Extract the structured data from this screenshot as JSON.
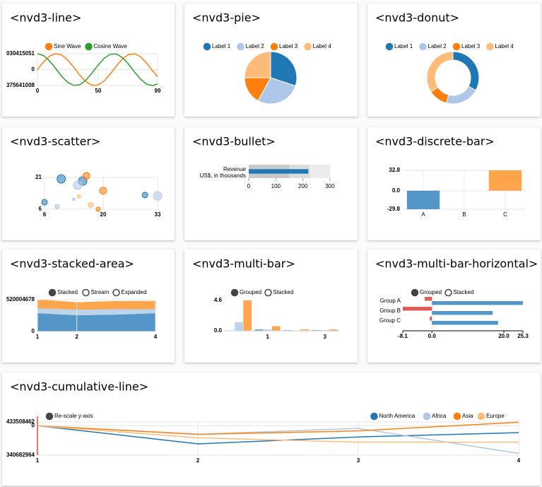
{
  "chart_data": [
    {
      "type": "line",
      "title": "<nvd3-line>",
      "legend": "top",
      "x": [
        0,
        5,
        10,
        15,
        20,
        25,
        30,
        35,
        40,
        45,
        50,
        55,
        60,
        65,
        70,
        75,
        80,
        85,
        90,
        95,
        99
      ],
      "series": [
        {
          "name": "Sine Wave",
          "color": "#ff7f0e",
          "values": [
            0,
            0.48,
            0.84,
            1.0,
            0.91,
            0.6,
            0.14,
            -0.35,
            -0.76,
            -0.98,
            -0.96,
            -0.71,
            -0.28,
            0.22,
            0.66,
            0.94,
            0.99,
            0.8,
            0.41,
            -0.08,
            -0.46
          ]
        },
        {
          "name": "Cosine Wave",
          "color": "#2ca02c",
          "values": [
            1,
            0.88,
            0.54,
            0.07,
            -0.42,
            -0.8,
            -0.99,
            -0.94,
            -0.65,
            -0.21,
            0.28,
            0.71,
            0.96,
            0.98,
            0.75,
            0.35,
            -0.15,
            -0.6,
            -0.91,
            -1.0,
            -0.89
          ]
        }
      ],
      "xlim": [
        0,
        99
      ],
      "xticks": [
        0,
        50,
        99
      ],
      "ylim": [
        -0.99375641008,
        0.99030415051
      ],
      "yticks": [
        {
          "value": -0.99375641008,
          "label": "375641008"
        },
        0,
        {
          "value": 0.99030415051,
          "label": "030415051"
        }
      ],
      "grid": true
    },
    {
      "type": "pie",
      "title": "<nvd3-pie>",
      "categories": [
        "Label 1",
        "Label 2",
        "Label 3",
        "Label 4"
      ],
      "values": [
        30,
        28,
        17,
        25
      ],
      "colors": [
        "#1f77b4",
        "#aec7e8",
        "#ff7f0e",
        "#ffbb78"
      ]
    },
    {
      "type": "donut",
      "title": "<nvd3-donut>",
      "categories": [
        "Label 1",
        "Label 2",
        "Label 3",
        "Label 4"
      ],
      "values": [
        33,
        21,
        12,
        34
      ],
      "colors": [
        "#1f77b4",
        "#aec7e8",
        "#ff7f0e",
        "#ffbb78"
      ]
    },
    {
      "type": "scatter",
      "title": "<nvd3-scatter>",
      "series": [
        {
          "color": "#1f77b4",
          "x": [
            10,
            15.1,
            6,
            30
          ],
          "values": [
            20.3,
            19.3,
            9.3,
            12.7
          ],
          "sizes": [
            6,
            6,
            4,
            4
          ]
        },
        {
          "color": "#aec7e8",
          "x": [
            13.9,
            9,
            33,
            13
          ],
          "values": [
            17.3,
            7.3,
            12.3,
            10.7
          ],
          "sizes": [
            6,
            3,
            6,
            2
          ]
        },
        {
          "color": "#ff7f0e",
          "x": [
            16,
            20,
            18.8
          ],
          "values": [
            21.7,
            14.7,
            6
          ],
          "sizes": [
            5,
            5,
            3
          ]
        },
        {
          "color": "#ffbb78",
          "x": [
            14.2,
            17
          ],
          "values": [
            12,
            8
          ],
          "sizes": [
            2.5,
            3.5
          ]
        }
      ],
      "xlim": [
        6,
        33
      ],
      "xticks": [
        6,
        20,
        33
      ],
      "ylim": [
        6,
        21
      ],
      "yticks": [
        6,
        21
      ],
      "grid": true
    },
    {
      "type": "bullet",
      "title": "<nvd3-bullet>",
      "label": "Revenue",
      "sublabel": "US$, in thousands",
      "ranges": [
        150,
        225,
        300
      ],
      "measures": [
        220
      ],
      "range_colors": [
        "#c8c8c8",
        "#dcdcdc",
        "#ececec"
      ],
      "color": "#1f77b4",
      "xlim": [
        0,
        300
      ],
      "xticks": [
        0,
        100,
        200,
        300
      ]
    },
    {
      "type": "bar",
      "title": "<nvd3-discrete-bar>",
      "categories": [
        "A",
        "B",
        "C"
      ],
      "values": [
        -29.8,
        0,
        32.8
      ],
      "colors": [
        "#5596c8",
        "#aec7e8",
        "#ffa64d"
      ],
      "ylim": [
        -29.8,
        32.8
      ],
      "yticks": [
        -29.8,
        {
          "value": 0,
          "label": "0.0"
        },
        32.8
      ],
      "grid": true
    },
    {
      "type": "area",
      "title": "<nvd3-stacked-area>",
      "controls": [
        "Stacked",
        "Stream",
        "Expanded"
      ],
      "controls_selected": 0,
      "x": [
        1,
        2,
        3,
        4
      ],
      "series": [
        {
          "color": "#5596c8",
          "values": [
            0.88,
            0.78,
            0.81,
            0.88
          ]
        },
        {
          "color": "#bcd3ec",
          "values": [
            0.24,
            0.27,
            0.27,
            0.2
          ]
        },
        {
          "color": "#ffa64d",
          "values": [
            0.41,
            0.34,
            0.37,
            0.37
          ]
        }
      ],
      "xlim": [
        1,
        4
      ],
      "xticks": [
        1,
        2,
        4
      ],
      "ylim": [
        0,
        1.520004678
      ],
      "yticks": [
        0,
        {
          "value": 1.520004678,
          "label": "520004678"
        }
      ],
      "grid": true
    },
    {
      "type": "groupedbar",
      "title": "<nvd3-multi-bar>",
      "controls": [
        "Grouped",
        "Stacked"
      ],
      "controls_selected": 0,
      "categories": [
        null,
        "1",
        null,
        "3"
      ],
      "series": [
        {
          "color": "#5596c8",
          "values": [
            0.05,
            0.2,
            0.1,
            0.1
          ]
        },
        {
          "color": "#bcd3ec",
          "values": [
            1.3,
            0.2,
            0.05,
            0.1
          ]
        },
        {
          "color": "#ffa64d",
          "values": [
            4.6,
            0.7,
            0.2,
            0.2
          ]
        }
      ],
      "ylim": [
        0,
        4.6
      ],
      "yticks": [
        {
          "value": 0,
          "label": "0.0"
        },
        4.6
      ]
    },
    {
      "type": "hbar",
      "title": "<nvd3-multi-bar-horizontal>",
      "controls": [
        "Grouped",
        "Stacked"
      ],
      "controls_selected": 0,
      "categories": [
        "Group A",
        "Group B",
        "Group C"
      ],
      "series": [
        {
          "color": "#e05a5a",
          "values": [
            -2,
            -8.1,
            -0.6
          ]
        },
        {
          "color": "#5596c8",
          "values": [
            25.3,
            16.9,
            18.4
          ]
        }
      ],
      "xlim": [
        -8.1,
        25.3
      ],
      "xticks": [
        -8.1,
        {
          "value": 0,
          "label": "0.0"
        },
        {
          "value": 20,
          "label": "20.0"
        },
        25.3
      ]
    },
    {
      "type": "line",
      "title": "<nvd3-cumulative-line>",
      "controls": [
        "Re-scale y-axis"
      ],
      "controls_selected": 0,
      "legend": "top-right",
      "x": [
        1,
        2,
        3,
        4
      ],
      "series": [
        {
          "name": "North America",
          "color": "#1f77b4",
          "values": [
            0,
            -0.21,
            -0.13,
            -0.08
          ]
        },
        {
          "name": "Africa",
          "color": "#aec7e8",
          "values": [
            0,
            -0.1,
            -0.03,
            -0.32
          ]
        },
        {
          "name": "Asia",
          "color": "#ff7f0e",
          "values": [
            0,
            -0.1,
            -0.06,
            0.04
          ]
        },
        {
          "name": "Europe",
          "color": "#ffbb78",
          "values": [
            0,
            -0.14,
            -0.19,
            -0.19
          ]
        }
      ],
      "xlim": [
        1,
        4
      ],
      "xticks": [
        1,
        2,
        3,
        4
      ],
      "ylim": [
        -0.340682964,
        0.0433508462
      ],
      "yticks": [
        {
          "value": -0.340682964,
          "label": "340682964"
        },
        0,
        {
          "value": 0.0433508462,
          "label": "433508462"
        }
      ],
      "grid": true
    }
  ]
}
